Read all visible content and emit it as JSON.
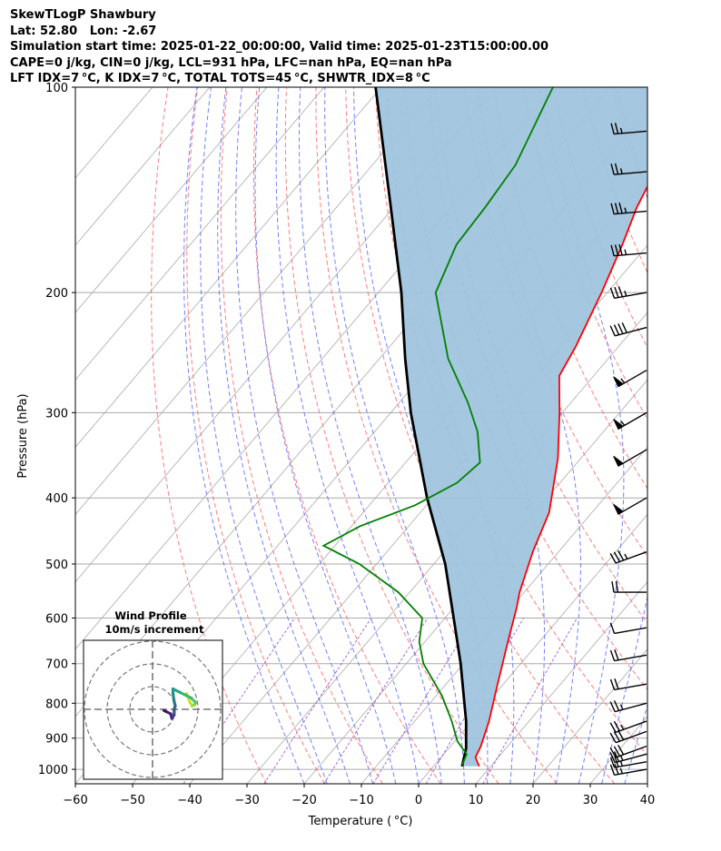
{
  "header": {
    "line1": "SkewTLogP Shawbury",
    "line2": "Lat: 52.80   Lon: -2.67",
    "line3": "Simulation start time: 2025-01-22_00:00:00, Valid time: 2025-01-23T15:00:00.00",
    "line4": "CAPE=0 j/kg, CIN=0 j/kg, LCL=931 hPa, LFC=nan hPa, EQ=nan hPa",
    "line5": "LFT IDX=7 °C, K IDX=7 °C, TOTAL TOTS=45 °C, SHWTR_IDX=8 °C"
  },
  "colors": {
    "temperature": "#ff0000",
    "dewpoint": "#008000",
    "parcel": "#000000",
    "shading": "#a0c4de",
    "dry_adiabats": "#ff6666",
    "moist_adiabats": "#5a6cff",
    "mixing_ratio": "#9944cc",
    "isotherms": "#aaaaaa"
  },
  "chart_data": {
    "type": "skewt-logp",
    "xlabel": "Temperature ( °C)",
    "ylabel": "Pressure (hPa)",
    "xlim": [
      -60,
      40
    ],
    "ylim": [
      1050,
      100
    ],
    "x_ticks": [
      "−60",
      "−50",
      "−40",
      "−30",
      "−20",
      "−10",
      "0",
      "10",
      "20",
      "30",
      "40"
    ],
    "y_ticks": [
      "100",
      "200",
      "300",
      "400",
      "500",
      "600",
      "700",
      "800",
      "900",
      "1000"
    ],
    "grid": true,
    "temperature_profile": [
      {
        "p": 990,
        "t": 8.0
      },
      {
        "p": 960,
        "t": 6.0
      },
      {
        "p": 925,
        "t": 5.3
      },
      {
        "p": 850,
        "t": 3.0
      },
      {
        "p": 750,
        "t": -1.0
      },
      {
        "p": 650,
        "t": -5.5
      },
      {
        "p": 580,
        "t": -9.0
      },
      {
        "p": 550,
        "t": -10.8
      },
      {
        "p": 480,
        "t": -14.5
      },
      {
        "p": 420,
        "t": -17.5
      },
      {
        "p": 350,
        "t": -24.0
      },
      {
        "p": 300,
        "t": -30.5
      },
      {
        "p": 265,
        "t": -36.0
      },
      {
        "p": 240,
        "t": -37.5
      },
      {
        "p": 200,
        "t": -41.0
      },
      {
        "p": 170,
        "t": -44.5
      },
      {
        "p": 150,
        "t": -47.5
      },
      {
        "p": 130,
        "t": -50.0
      },
      {
        "p": 100,
        "t": -58.0
      }
    ],
    "dewpoint_profile": [
      {
        "p": 985,
        "t": 4.8
      },
      {
        "p": 950,
        "t": 4.0
      },
      {
        "p": 910,
        "t": 0.5
      },
      {
        "p": 850,
        "t": -3.5
      },
      {
        "p": 780,
        "t": -9.0
      },
      {
        "p": 700,
        "t": -17.0
      },
      {
        "p": 650,
        "t": -21.0
      },
      {
        "p": 600,
        "t": -24.0
      },
      {
        "p": 550,
        "t": -32.0
      },
      {
        "p": 500,
        "t": -43.0
      },
      {
        "p": 470,
        "t": -52.0
      },
      {
        "p": 440,
        "t": -48.5
      },
      {
        "p": 410,
        "t": -42.0
      },
      {
        "p": 380,
        "t": -38.0
      },
      {
        "p": 355,
        "t": -37.0
      },
      {
        "p": 320,
        "t": -42.0
      },
      {
        "p": 290,
        "t": -48.0
      },
      {
        "p": 250,
        "t": -58.0
      },
      {
        "p": 200,
        "t": -70.0
      },
      {
        "p": 170,
        "t": -73.5
      },
      {
        "p": 150,
        "t": -74.0
      },
      {
        "p": 130,
        "t": -75.0
      },
      {
        "p": 100,
        "t": -80.0
      }
    ],
    "parcel_profile": [
      {
        "p": 990,
        "t": 5.0
      },
      {
        "p": 931,
        "t": 3.0
      },
      {
        "p": 850,
        "t": -1.0
      },
      {
        "p": 700,
        "t": -10.5
      },
      {
        "p": 600,
        "t": -18.5
      },
      {
        "p": 500,
        "t": -28.0
      },
      {
        "p": 400,
        "t": -41.0
      },
      {
        "p": 300,
        "t": -56.5
      },
      {
        "p": 250,
        "t": -65.5
      },
      {
        "p": 200,
        "t": -76.0
      },
      {
        "p": 150,
        "t": -90.5
      },
      {
        "p": 100,
        "t": -111.0
      }
    ],
    "wind_barbs": [
      {
        "p": 1000,
        "speed_kt": 25,
        "dir_deg": 260
      },
      {
        "p": 975,
        "speed_kt": 25,
        "dir_deg": 260
      },
      {
        "p": 950,
        "speed_kt": 25,
        "dir_deg": 255
      },
      {
        "p": 925,
        "speed_kt": 30,
        "dir_deg": 250
      },
      {
        "p": 880,
        "speed_kt": 30,
        "dir_deg": 250
      },
      {
        "p": 850,
        "speed_kt": 25,
        "dir_deg": 250
      },
      {
        "p": 800,
        "speed_kt": 25,
        "dir_deg": 255
      },
      {
        "p": 750,
        "speed_kt": 20,
        "dir_deg": 260
      },
      {
        "p": 680,
        "speed_kt": 20,
        "dir_deg": 260
      },
      {
        "p": 620,
        "speed_kt": 10,
        "dir_deg": 260
      },
      {
        "p": 550,
        "speed_kt": 20,
        "dir_deg": 270
      },
      {
        "p": 480,
        "speed_kt": 35,
        "dir_deg": 250
      },
      {
        "p": 400,
        "speed_kt": 50,
        "dir_deg": 240
      },
      {
        "p": 340,
        "speed_kt": 50,
        "dir_deg": 240
      },
      {
        "p": 300,
        "speed_kt": 55,
        "dir_deg": 240
      },
      {
        "p": 260,
        "speed_kt": 55,
        "dir_deg": 240
      },
      {
        "p": 225,
        "speed_kt": 40,
        "dir_deg": 255
      },
      {
        "p": 200,
        "speed_kt": 35,
        "dir_deg": 260
      },
      {
        "p": 175,
        "speed_kt": 35,
        "dir_deg": 265
      },
      {
        "p": 152,
        "speed_kt": 35,
        "dir_deg": 265
      },
      {
        "p": 133,
        "speed_kt": 25,
        "dir_deg": 265
      },
      {
        "p": 116,
        "speed_kt": 25,
        "dir_deg": 265
      }
    ],
    "hodograph": {
      "title": "Wind Profile",
      "subtitle": "10m/s increment",
      "ring_increment_ms": 10,
      "rings": 3,
      "track": [
        {
          "u": 15.0,
          "v": 7.0
        },
        {
          "u": 16.5,
          "v": 3.0
        },
        {
          "u": 17.5,
          "v": 1.5
        },
        {
          "u": 18.5,
          "v": 2.0
        },
        {
          "u": 19.0,
          "v": 3.0
        },
        {
          "u": 17.0,
          "v": 5.0
        },
        {
          "u": 12.0,
          "v": 7.5
        },
        {
          "u": 9.0,
          "v": 9.0
        },
        {
          "u": 9.0,
          "v": 7.0
        },
        {
          "u": 9.5,
          "v": 3.5
        },
        {
          "u": 10.0,
          "v": 1.5
        },
        {
          "u": 9.5,
          "v": 0.0
        },
        {
          "u": 9.5,
          "v": -2.5
        },
        {
          "u": 8.5,
          "v": -4.0
        },
        {
          "u": 8.0,
          "v": -2.0
        },
        {
          "u": 6.0,
          "v": -1.0
        },
        {
          "u": 5.0,
          "v": -0.5
        }
      ]
    }
  }
}
